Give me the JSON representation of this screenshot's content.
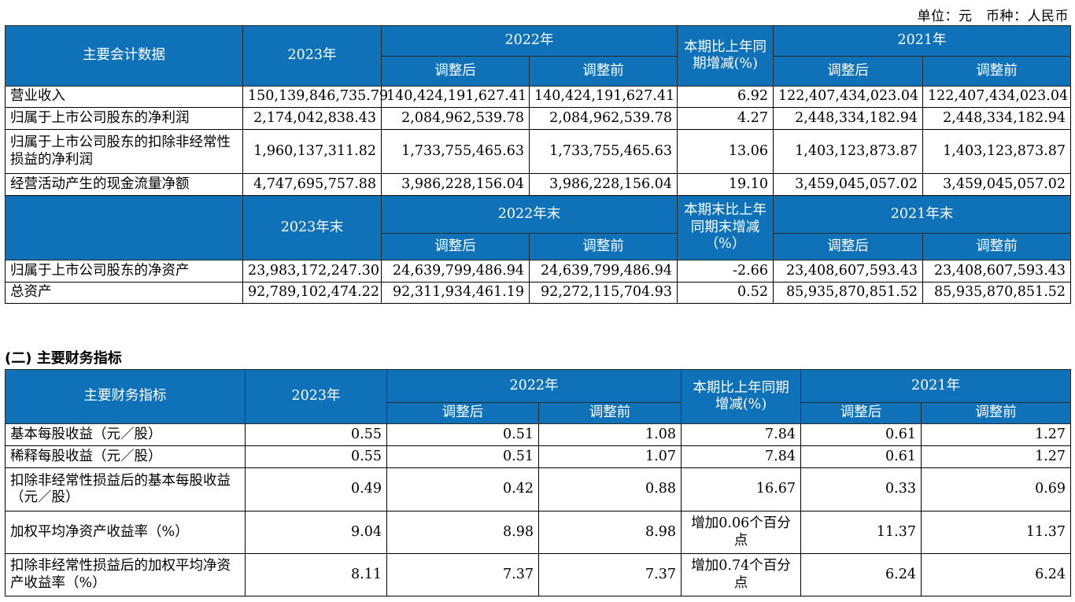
{
  "unit_line": "单位：元　币种：人民币",
  "table1": {
    "header_top": {
      "label": "主要会计数据",
      "y2023": "2023年",
      "y2022": "2022年",
      "change": "本期比上年同期增减(%)",
      "y2021": "2021年",
      "adjusted": "调整后",
      "before": "调整前"
    },
    "rows_top": [
      {
        "label": "营业收入",
        "v2023": "150,139,846,735.79",
        "v2022a": "140,424,191,627.41",
        "v2022b": "140,424,191,627.41",
        "chg": "6.92",
        "v2021a": "122,407,434,023.04",
        "v2021b": "122,407,434,023.04"
      },
      {
        "label": "归属于上市公司股东的净利润",
        "v2023": "2,174,042,838.43",
        "v2022a": "2,084,962,539.78",
        "v2022b": "2,084,962,539.78",
        "chg": "4.27",
        "v2021a": "2,448,334,182.94",
        "v2021b": "2,448,334,182.94"
      },
      {
        "label": "归属于上市公司股东的扣除非经常性损益的净利润",
        "v2023": "1,960,137,311.82",
        "v2022a": "1,733,755,465.63",
        "v2022b": "1,733,755,465.63",
        "chg": "13.06",
        "v2021a": "1,403,123,873.87",
        "v2021b": "1,403,123,873.87"
      },
      {
        "label": "经营活动产生的现金流量净额",
        "v2023": "4,747,695,757.88",
        "v2022a": "3,986,228,156.04",
        "v2022b": "3,986,228,156.04",
        "chg": "19.10",
        "v2021a": "3,459,045,057.02",
        "v2021b": "3,459,045,057.02"
      }
    ],
    "header_mid": {
      "y2023": "2023年末",
      "y2022": "2022年末",
      "change": "本期末比上年同期末增减（%）",
      "y2021": "2021年末",
      "adjusted": "调整后",
      "before": "调整前"
    },
    "rows_bottom": [
      {
        "label": "归属于上市公司股东的净资产",
        "v2023": "23,983,172,247.30",
        "v2022a": "24,639,799,486.94",
        "v2022b": "24,639,799,486.94",
        "chg": "-2.66",
        "v2021a": "23,408,607,593.43",
        "v2021b": "23,408,607,593.43"
      },
      {
        "label": "总资产",
        "v2023": "92,789,102,474.22",
        "v2022a": "92,311,934,461.19",
        "v2022b": "92,272,115,704.93",
        "chg": "0.52",
        "v2021a": "85,935,870,851.52",
        "v2021b": "85,935,870,851.52"
      }
    ]
  },
  "section2_title": "(二) 主要财务指标",
  "table2": {
    "header": {
      "label": "主要财务指标",
      "y2023": "2023年",
      "y2022": "2022年",
      "change": "本期比上年同期增减(%)",
      "y2021": "2021年",
      "adjusted": "调整后",
      "before": "调整前"
    },
    "rows": [
      {
        "label": "基本每股收益（元／股）",
        "v2023": "0.55",
        "v2022a": "0.51",
        "v2022b": "1.08",
        "chg": "7.84",
        "v2021a": "0.61",
        "v2021b": "1.27"
      },
      {
        "label": "稀释每股收益（元／股）",
        "v2023": "0.55",
        "v2022a": "0.51",
        "v2022b": "1.07",
        "chg": "7.84",
        "v2021a": "0.61",
        "v2021b": "1.27"
      },
      {
        "label": "扣除非经常性损益后的基本每股收益（元／股）",
        "v2023": "0.49",
        "v2022a": "0.42",
        "v2022b": "0.88",
        "chg": "16.67",
        "v2021a": "0.33",
        "v2021b": "0.69"
      },
      {
        "label": "加权平均净资产收益率（%）",
        "v2023": "9.04",
        "v2022a": "8.98",
        "v2022b": "8.98",
        "chg": "增加0.06个百分点",
        "v2021a": "11.37",
        "v2021b": "11.37"
      },
      {
        "label": "扣除非经常性损益后的加权平均净资产收益率（%）",
        "v2023": "8.11",
        "v2022a": "7.37",
        "v2022b": "7.37",
        "chg": "增加0.74个百分点",
        "v2021a": "6.24",
        "v2021b": "6.24"
      }
    ]
  },
  "colors": {
    "header_bg": "#0f72b8",
    "header_text": "#ffffff"
  }
}
